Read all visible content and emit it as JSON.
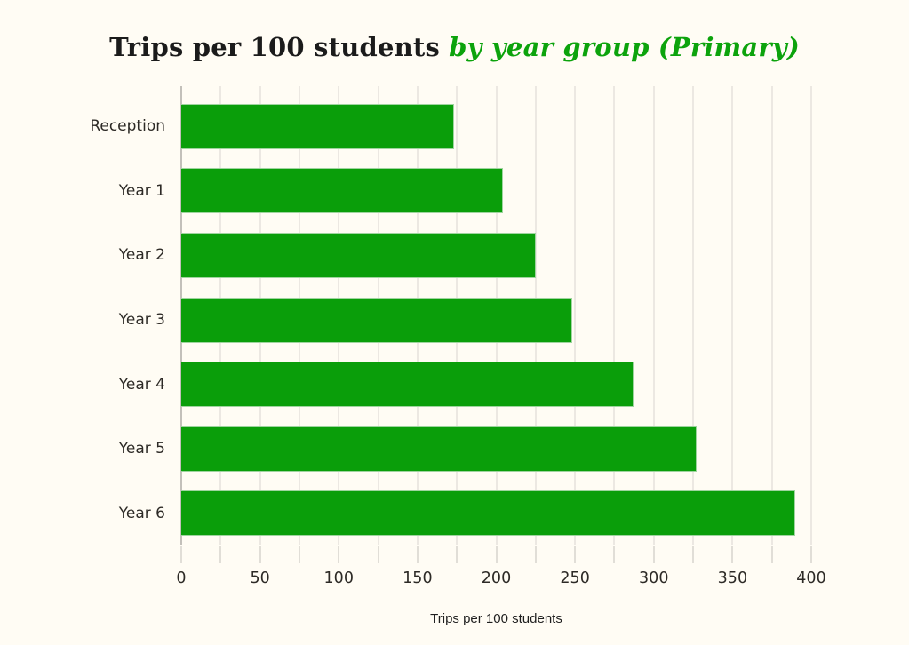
{
  "title": {
    "main": "Trips per 100 students",
    "accent": "by year group (Primary)"
  },
  "chart_data": {
    "type": "bar",
    "orientation": "horizontal",
    "title": "Trips per 100 students by year group (Primary)",
    "categories": [
      "Reception",
      "Year 1",
      "Year 2",
      "Year 3",
      "Year 4",
      "Year 5",
      "Year 6"
    ],
    "values": [
      173,
      204,
      225,
      248,
      287,
      327,
      390
    ],
    "xlabel": "Trips per 100 students",
    "ylabel": "",
    "xlim": [
      0,
      400
    ],
    "x_major_ticks": [
      0,
      50,
      100,
      150,
      200,
      250,
      300,
      350,
      400
    ],
    "x_minor_tick_step": 25,
    "grid": true,
    "legend": false
  },
  "colors": {
    "bar": "#0a9e0a",
    "bar_border": "#9fd49f",
    "accent_text": "#0ca30c",
    "background": "#fffcf4",
    "gridline": "#d9d5d0",
    "axis": "#c3c0ba",
    "text": "#2d2a26"
  }
}
